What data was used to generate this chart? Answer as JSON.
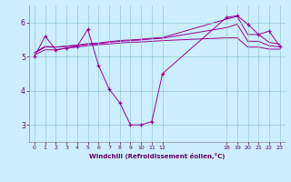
{
  "xlabel": "Windchill (Refroidissement éolien,°C)",
  "background_color": "#cceeff",
  "line_color": "#990099",
  "grid_color": "#99cccc",
  "x_ticks": [
    0,
    1,
    2,
    3,
    4,
    5,
    6,
    7,
    8,
    9,
    10,
    11,
    12,
    18,
    19,
    20,
    21,
    22,
    23
  ],
  "ylim": [
    2.5,
    6.5
  ],
  "xlim": [
    -0.5,
    23.5
  ],
  "yticks": [
    3,
    4,
    5,
    6
  ],
  "series_main": {
    "x": [
      0,
      1,
      2,
      3,
      4,
      5,
      6,
      7,
      8,
      9,
      10,
      11,
      12,
      18,
      19,
      20,
      21,
      22,
      23
    ],
    "y": [
      5.0,
      5.6,
      5.2,
      5.25,
      5.3,
      5.8,
      4.75,
      4.05,
      3.65,
      3.0,
      3.0,
      3.1,
      4.5,
      6.15,
      6.2,
      5.95,
      5.65,
      5.75,
      5.3
    ]
  },
  "series_smooth": [
    {
      "x": [
        0,
        1,
        2,
        3,
        4,
        5,
        6,
        7,
        8,
        9,
        10,
        11,
        12,
        18,
        19,
        20,
        21,
        22,
        23
      ],
      "y": [
        5.05,
        5.2,
        5.2,
        5.25,
        5.28,
        5.32,
        5.35,
        5.37,
        5.4,
        5.42,
        5.43,
        5.45,
        5.47,
        5.55,
        5.55,
        5.28,
        5.28,
        5.22,
        5.22
      ]
    },
    {
      "x": [
        0,
        1,
        2,
        3,
        4,
        5,
        6,
        7,
        8,
        9,
        10,
        11,
        12,
        18,
        19,
        20,
        21,
        22,
        23
      ],
      "y": [
        5.1,
        5.28,
        5.28,
        5.3,
        5.32,
        5.36,
        5.38,
        5.42,
        5.45,
        5.47,
        5.49,
        5.52,
        5.54,
        5.85,
        5.95,
        5.45,
        5.45,
        5.32,
        5.29
      ]
    },
    {
      "x": [
        0,
        1,
        2,
        3,
        4,
        5,
        6,
        7,
        8,
        9,
        10,
        11,
        12,
        18,
        19,
        20,
        21,
        22,
        23
      ],
      "y": [
        5.12,
        5.3,
        5.28,
        5.31,
        5.34,
        5.38,
        5.4,
        5.44,
        5.47,
        5.49,
        5.51,
        5.54,
        5.56,
        6.1,
        6.18,
        5.65,
        5.65,
        5.42,
        5.37
      ]
    }
  ]
}
